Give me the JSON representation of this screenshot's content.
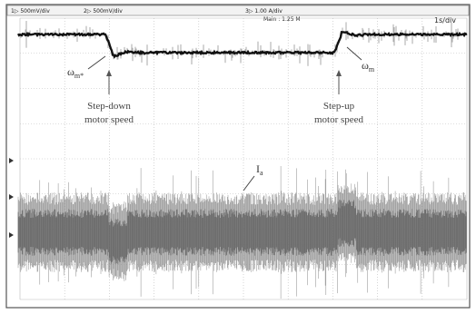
{
  "header": {
    "channel_1": "1▷ 500mV/div",
    "channel_2": "2▷ 500mV/div",
    "channel_3": "3▷ 1.00 A/div",
    "timebase": "Main : 1.25 M",
    "time_per_div": "1s/div"
  },
  "annotations": {
    "omega_ref": {
      "symbol": "ω",
      "sub": "m*"
    },
    "omega": {
      "symbol": "ω",
      "sub": "m"
    },
    "current": {
      "symbol": "I",
      "sub": "a"
    },
    "step_down": [
      "Step-down",
      "motor speed"
    ],
    "step_up": [
      "Step-up",
      "motor speed"
    ]
  }
}
